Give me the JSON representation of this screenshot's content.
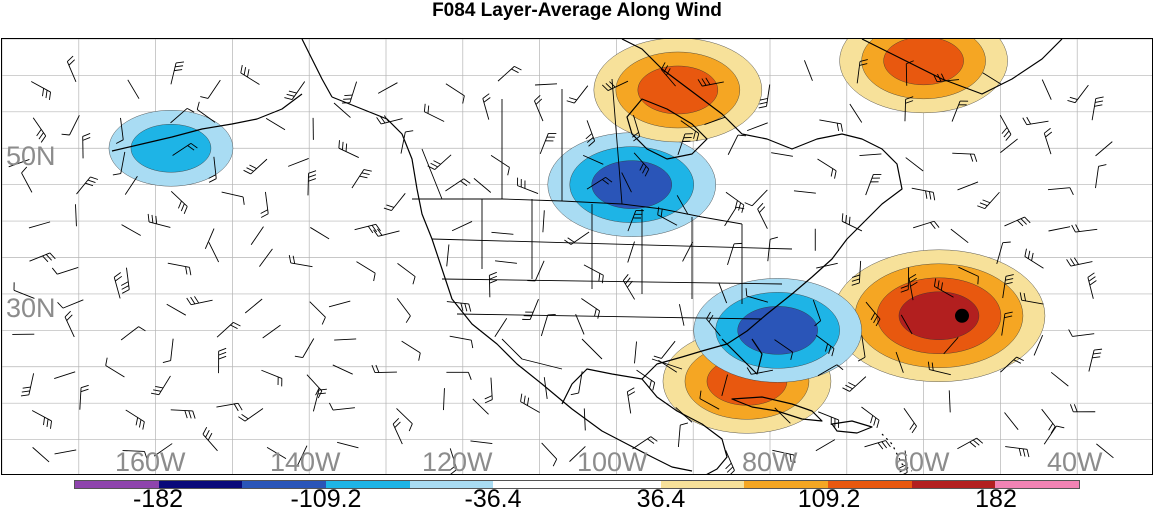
{
  "title": "F084 Layer-Average Along Wind",
  "map": {
    "lat_labels": [
      "50N",
      "30N"
    ],
    "lon_labels": [
      "160W",
      "140W",
      "120W",
      "100W",
      "80W",
      "60W",
      "40W"
    ],
    "colors": {
      "land_outline": "#000000",
      "grid": "#b4b4b4",
      "background": "#ffffff"
    },
    "anomalies": [
      {
        "name": "atlantic-positive-core",
        "lon": -58,
        "lat": 27,
        "sign": "positive",
        "level": 3
      },
      {
        "name": "caribbean-positive",
        "lon": -83,
        "lat": 18,
        "sign": "positive",
        "level": 2
      },
      {
        "name": "gulf-negative",
        "lon": -79,
        "lat": 25,
        "sign": "negative",
        "level": 2
      },
      {
        "name": "great-lakes-negative",
        "lon": -98,
        "lat": 45,
        "sign": "negative",
        "level": 2
      },
      {
        "name": "hudson-positive",
        "lon": -92,
        "lat": 58,
        "sign": "positive",
        "level": 2
      },
      {
        "name": "labrador-positive",
        "lon": -60,
        "lat": 62,
        "sign": "positive",
        "level": 2
      },
      {
        "name": "pacific-negative",
        "lon": -158,
        "lat": 50,
        "sign": "negative",
        "level": 1
      }
    ],
    "storm_marker": {
      "lon": -55,
      "lat": 27
    }
  },
  "colorbar": {
    "colors": [
      "#8e44ad",
      "#0a0a7a",
      "#2a55b8",
      "#1eb4e6",
      "#a9dcf3",
      "#ffffff",
      "#ffffff",
      "#f7e19a",
      "#f5a623",
      "#e8580f",
      "#b21f1f",
      "#f283b4"
    ],
    "labels": [
      "-182",
      "-109.2",
      "-36.4",
      "36.4",
      "109.2",
      "182"
    ]
  }
}
